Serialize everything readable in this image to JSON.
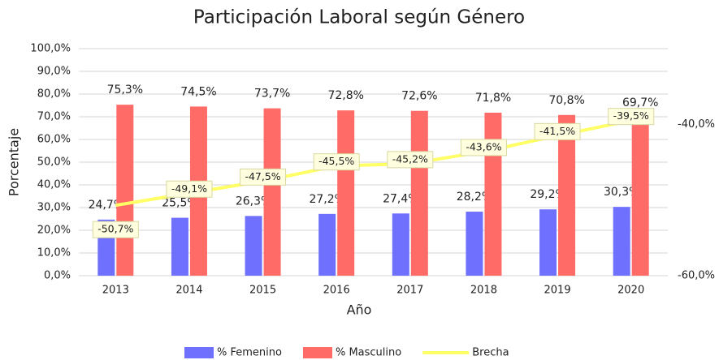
{
  "chart_data": {
    "type": "bar_line",
    "title": "Participación Laboral según Género",
    "x_label": "Año",
    "y_label": "Porcentaje",
    "categories": [
      "2013",
      "2014",
      "2015",
      "2016",
      "2017",
      "2018",
      "2019",
      "2020"
    ],
    "series": [
      {
        "name": "% Femenino",
        "type": "bar",
        "color": "#7070ff",
        "values": [
          24.7,
          25.5,
          26.3,
          27.2,
          27.4,
          28.2,
          29.2,
          30.3
        ],
        "value_labels": [
          "24,7%",
          "25,5%",
          "26,3%",
          "27,2%",
          "27,4%",
          "28,2%",
          "29,2%",
          "30,3%"
        ]
      },
      {
        "name": "% Masculino",
        "type": "bar",
        "color": "#ff6b66",
        "values": [
          75.3,
          74.5,
          73.7,
          72.8,
          72.6,
          71.8,
          70.8,
          69.7
        ],
        "value_labels": [
          "75,3%",
          "74,5%",
          "73,7%",
          "72,8%",
          "72,6%",
          "71,8%",
          "70,8%",
          "69,7%"
        ]
      },
      {
        "name": "Brecha",
        "type": "line",
        "axis": "y2",
        "color": "#ffff66",
        "values": [
          -50.7,
          -49.1,
          -47.5,
          -45.5,
          -45.2,
          -43.6,
          -41.5,
          -39.5
        ],
        "value_labels": [
          "-50,7%",
          "-49,1%",
          "-47,5%",
          "-45,5%",
          "-45,2%",
          "-43,6%",
          "-41,5%",
          "-39,5%"
        ]
      }
    ],
    "ylim": [
      0,
      100
    ],
    "yticks": [
      {
        "value": 0,
        "label": "0,0%"
      },
      {
        "value": 10,
        "label": "10,0%"
      },
      {
        "value": 20,
        "label": "20,0%"
      },
      {
        "value": 30,
        "label": "30,0%"
      },
      {
        "value": 40,
        "label": "40,0%"
      },
      {
        "value": 50,
        "label": "50,0%"
      },
      {
        "value": 60,
        "label": "60,0%"
      },
      {
        "value": 70,
        "label": "70,0%"
      },
      {
        "value": 80,
        "label": "80,0%"
      },
      {
        "value": 90,
        "label": "90,0%"
      },
      {
        "value": 100,
        "label": "100,0%"
      }
    ],
    "y2lim": [
      -60,
      -30
    ],
    "y2ticks": [
      {
        "value": -60,
        "label": "-60,0%"
      },
      {
        "value": -40,
        "label": "-40,0%"
      }
    ],
    "grid": true,
    "legend": "bottom"
  }
}
